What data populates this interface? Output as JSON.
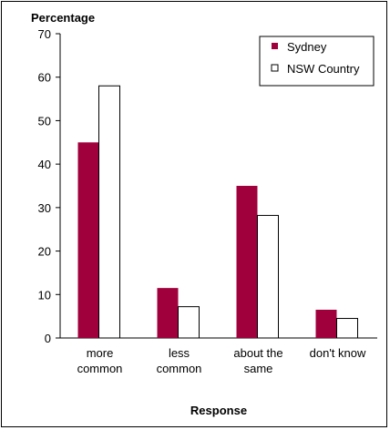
{
  "chart_data": {
    "type": "bar",
    "title": "",
    "ylabel": "Percentage",
    "xlabel": "Response",
    "categories": [
      [
        "more",
        "common"
      ],
      [
        "less",
        "common"
      ],
      [
        "about the",
        "same"
      ],
      [
        "don't know"
      ]
    ],
    "series": [
      {
        "name": "Sydney",
        "color": "#a0003c",
        "values": [
          45,
          11.5,
          35,
          6.5
        ]
      },
      {
        "name": "NSW Country",
        "color": "#ffffff",
        "values": [
          58,
          7.2,
          28.2,
          4.5
        ]
      }
    ],
    "ylim": [
      0,
      70
    ],
    "yticks": [
      0,
      10,
      20,
      30,
      40,
      50,
      60,
      70
    ],
    "grid": false,
    "legend_position": "top-right"
  }
}
